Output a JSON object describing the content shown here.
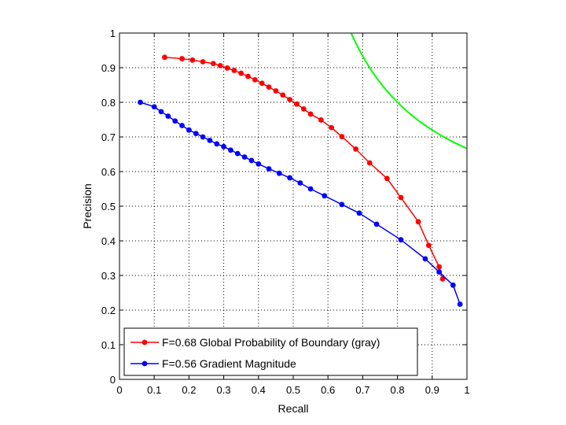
{
  "chart_data": {
    "type": "line",
    "title": "",
    "xlabel": "Recall",
    "ylabel": "Precision",
    "xlim": [
      0,
      1
    ],
    "ylim": [
      0,
      1
    ],
    "xticks": [
      "0",
      "0.1",
      "0.2",
      "0.3",
      "0.4",
      "0.5",
      "0.6",
      "0.7",
      "0.8",
      "0.9",
      "1"
    ],
    "yticks": [
      "0",
      "0.1",
      "0.2",
      "0.3",
      "0.4",
      "0.5",
      "0.6",
      "0.7",
      "0.8",
      "0.9",
      "1"
    ],
    "grid": true,
    "legend_position": "bottom-left",
    "series": [
      {
        "name": "F=0.68 Global Probability of Boundary (gray)",
        "color": "#ff0000",
        "markers": true,
        "x": [
          0.13,
          0.18,
          0.21,
          0.24,
          0.27,
          0.29,
          0.31,
          0.33,
          0.35,
          0.37,
          0.39,
          0.41,
          0.43,
          0.45,
          0.47,
          0.49,
          0.51,
          0.53,
          0.55,
          0.58,
          0.61,
          0.64,
          0.68,
          0.72,
          0.77,
          0.81,
          0.86,
          0.89,
          0.92,
          0.93
        ],
        "y": [
          0.93,
          0.926,
          0.922,
          0.917,
          0.912,
          0.906,
          0.899,
          0.892,
          0.884,
          0.875,
          0.865,
          0.855,
          0.844,
          0.833,
          0.821,
          0.808,
          0.795,
          0.781,
          0.766,
          0.749,
          0.727,
          0.701,
          0.665,
          0.625,
          0.58,
          0.525,
          0.455,
          0.387,
          0.325,
          0.29
        ]
      },
      {
        "name": "F=0.56 Gradient Magnitude",
        "color": "#0000ff",
        "markers": true,
        "x": [
          0.06,
          0.1,
          0.12,
          0.14,
          0.16,
          0.18,
          0.2,
          0.22,
          0.24,
          0.26,
          0.28,
          0.3,
          0.32,
          0.34,
          0.36,
          0.38,
          0.4,
          0.43,
          0.46,
          0.49,
          0.52,
          0.55,
          0.59,
          0.64,
          0.69,
          0.74,
          0.81,
          0.88,
          0.92,
          0.96,
          0.98
        ],
        "y": [
          0.8,
          0.787,
          0.773,
          0.76,
          0.746,
          0.733,
          0.72,
          0.71,
          0.7,
          0.69,
          0.68,
          0.672,
          0.662,
          0.652,
          0.642,
          0.632,
          0.622,
          0.608,
          0.595,
          0.582,
          0.567,
          0.55,
          0.53,
          0.505,
          0.48,
          0.448,
          0.403,
          0.348,
          0.31,
          0.272,
          0.217
        ]
      },
      {
        "name": "",
        "color": "#00ff00",
        "markers": false,
        "f_value": 0.8
      }
    ]
  }
}
